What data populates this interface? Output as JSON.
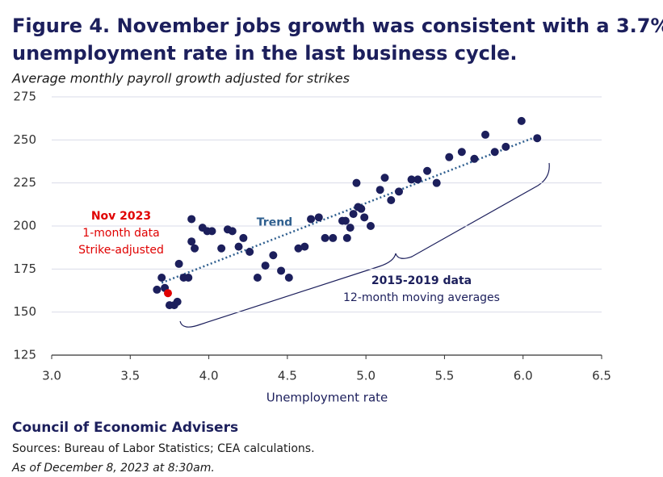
{
  "chart_data": {
    "type": "scatter",
    "title_lines": [
      "Figure 4. November jobs growth was consistent with a 3.7%",
      "unemployment rate in the last business cycle."
    ],
    "subtitle": "Average monthly payroll growth adjusted for strikes",
    "x_label": "Unemployment rate",
    "xlim": [
      3.0,
      6.5
    ],
    "xticks": [
      {
        "value": 3,
        "label": "3.0"
      },
      3.5,
      {
        "value": 4,
        "label": "4.0"
      },
      4.5,
      {
        "value": 5,
        "label": "5.0"
      },
      5.5,
      {
        "value": 6,
        "label": "6.0"
      },
      6.5
    ],
    "ylim": [
      125,
      275
    ],
    "yticks": [
      125,
      150,
      175,
      200,
      225,
      250,
      275
    ],
    "grid": true,
    "series": [
      {
        "name": "2015-2019 data",
        "note": "12-month moving averages",
        "color": "#1c1f5c",
        "kind": "points",
        "x": [
          3.67,
          3.7,
          3.72,
          3.75,
          3.78,
          3.8,
          3.81,
          3.84,
          3.87,
          3.89,
          3.89,
          3.91,
          3.96,
          3.99,
          4.02,
          4.08,
          4.12,
          4.15,
          4.19,
          4.22,
          4.26,
          4.31,
          4.36,
          4.41,
          4.46,
          4.51,
          4.57,
          4.61,
          4.65,
          4.7,
          4.74,
          4.79,
          4.85,
          4.87,
          4.88,
          4.9,
          4.92,
          4.94,
          4.95,
          4.97,
          4.99,
          5.03,
          5.09,
          5.12,
          5.16,
          5.21,
          5.29,
          5.33,
          5.39,
          5.45,
          5.53,
          5.61,
          5.69,
          5.76,
          5.82,
          5.89,
          5.99,
          6.09
        ],
        "values": [
          163,
          170,
          164,
          154,
          154,
          156,
          178,
          170,
          170,
          204,
          191,
          187,
          199,
          197,
          197,
          187,
          198,
          197,
          188,
          193,
          185,
          170,
          177,
          183,
          174,
          170,
          187,
          188,
          204,
          205,
          193,
          193,
          203,
          203,
          193,
          199,
          207,
          225,
          211,
          210,
          205,
          200,
          221,
          228,
          215,
          220,
          227,
          227,
          232,
          225,
          240,
          243,
          239,
          253,
          243,
          246,
          261,
          251
        ]
      },
      {
        "name": "Nov 2023",
        "note_lines": [
          "1-month data",
          "Strike-adjusted"
        ],
        "color": "#e00000",
        "kind": "points",
        "x": [
          3.74
        ],
        "values": [
          161
        ]
      },
      {
        "name": "Trend",
        "color": "#2f5f8f",
        "kind": "line",
        "x": [
          3.7,
          6.06
        ],
        "values": [
          167,
          251
        ]
      }
    ],
    "footer": {
      "org": "Council of Economic Advisers",
      "sources": "Sources: Bureau of Labor Statistics; CEA calculations.",
      "date": "As of December 8, 2023 at 8:30am."
    }
  }
}
